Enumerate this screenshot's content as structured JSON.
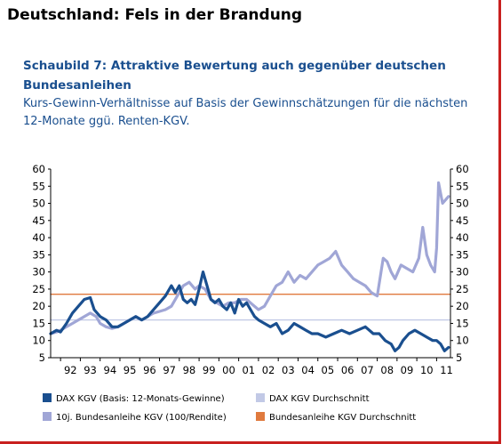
{
  "header": {
    "title": "Deutschland: Fels in der Brandung"
  },
  "chart_data": {
    "type": "line",
    "title": "Schaubild 7: Attraktive Bewertung auch gegenüber deutschen Bundesanleihen",
    "subtitle": "Kurs-Gewinn-Verhältnisse auf Basis der Gewinnschätzungen für die nächsten 12-Monate ggü. Renten-KGV.",
    "xlabel": "",
    "ylabel": "",
    "xlim": [
      1991.5,
      2011.7
    ],
    "ylim": [
      5,
      60
    ],
    "x_tick_labels": [
      "92",
      "93",
      "94",
      "95",
      "96",
      "97",
      "98",
      "99",
      "00",
      "01",
      "02",
      "03",
      "04",
      "05",
      "06",
      "07",
      "08",
      "09",
      "10",
      "11"
    ],
    "y_ticks": [
      5,
      10,
      15,
      20,
      25,
      30,
      35,
      40,
      45,
      50,
      55,
      60
    ],
    "grid": false,
    "legend_position": "bottom",
    "colors": {
      "dax": "#1a4f8f",
      "dax_avg": "#c2c9e6",
      "bund": "#a0a6d6",
      "bund_avg": "#e07a3e",
      "axis": "#000000"
    },
    "series": [
      {
        "name": "DAX KGV (Basis: 12-Monats-Gewinne)",
        "key": "dax",
        "x": [
          1991.5,
          1991.8,
          1992.0,
          1992.3,
          1992.6,
          1992.9,
          1993.2,
          1993.5,
          1993.7,
          1994.0,
          1994.3,
          1994.6,
          1994.9,
          1995.2,
          1995.5,
          1995.8,
          1996.1,
          1996.4,
          1996.7,
          1997.0,
          1997.3,
          1997.6,
          1997.8,
          1998.0,
          1998.2,
          1998.4,
          1998.6,
          1998.8,
          1999.0,
          1999.2,
          1999.4,
          1999.6,
          1999.8,
          2000.0,
          2000.2,
          2000.4,
          2000.6,
          2000.8,
          2001.0,
          2001.2,
          2001.4,
          2001.6,
          2001.8,
          2002.0,
          2002.3,
          2002.6,
          2002.9,
          2003.2,
          2003.5,
          2003.8,
          2004.1,
          2004.4,
          2004.7,
          2005.0,
          2005.4,
          2005.8,
          2006.2,
          2006.6,
          2007.0,
          2007.4,
          2007.8,
          2008.1,
          2008.4,
          2008.7,
          2008.9,
          2009.1,
          2009.3,
          2009.6,
          2009.9,
          2010.2,
          2010.5,
          2010.8,
          2011.0,
          2011.2,
          2011.4,
          2011.6
        ],
        "values": [
          12,
          13,
          12.5,
          15,
          18,
          20,
          22,
          22.5,
          19,
          17,
          16,
          14,
          14,
          15,
          16,
          17,
          16,
          17,
          19,
          21,
          23,
          26,
          24,
          26,
          22,
          21,
          22,
          20.5,
          25,
          30,
          26,
          22,
          21,
          22,
          20,
          19,
          21,
          18,
          22,
          20,
          21,
          19,
          17,
          16,
          15,
          14,
          15,
          12,
          13,
          15,
          14,
          13,
          12,
          12,
          11,
          12,
          13,
          12,
          13,
          14,
          12,
          12,
          10,
          9,
          7,
          8,
          10,
          12,
          13,
          12,
          11,
          10,
          10,
          9,
          7,
          8
        ]
      },
      {
        "name": "DAX KGV Durchschnitt",
        "key": "dax_avg",
        "x": [
          1991.5,
          2011.7
        ],
        "values": [
          16,
          16
        ]
      },
      {
        "name": "10j. Bundesanleihe KGV (100/Rendite)",
        "key": "bund",
        "x": [
          1991.5,
          1991.8,
          1992.0,
          1992.3,
          1992.6,
          1992.9,
          1993.2,
          1993.5,
          1993.8,
          1994.0,
          1994.3,
          1994.6,
          1994.9,
          1995.2,
          1995.5,
          1995.8,
          1996.1,
          1996.4,
          1996.7,
          1997.0,
          1997.3,
          1997.6,
          1997.9,
          1998.2,
          1998.5,
          1998.8,
          1999.0,
          1999.3,
          1999.6,
          1999.9,
          2000.2,
          2000.5,
          2000.8,
          2001.1,
          2001.4,
          2001.7,
          2002.0,
          2002.3,
          2002.6,
          2002.9,
          2003.2,
          2003.5,
          2003.8,
          2004.1,
          2004.4,
          2004.7,
          2005.0,
          2005.3,
          2005.6,
          2005.9,
          2006.2,
          2006.5,
          2006.8,
          2007.1,
          2007.4,
          2007.7,
          2008.0,
          2008.3,
          2008.5,
          2008.7,
          2008.9,
          2009.2,
          2009.5,
          2009.8,
          2010.1,
          2010.3,
          2010.5,
          2010.7,
          2010.9,
          2011.0,
          2011.1,
          2011.3,
          2011.6
        ],
        "values": [
          12,
          12.5,
          13,
          14,
          15,
          16,
          17,
          18,
          17,
          15,
          14,
          13.5,
          14,
          15,
          16,
          17,
          16,
          17,
          18,
          18.5,
          19,
          20,
          23,
          26,
          27,
          25,
          26,
          25,
          22,
          21,
          20,
          21,
          21,
          22,
          22,
          20.5,
          19,
          20,
          23,
          26,
          27,
          30,
          27,
          29,
          28,
          30,
          32,
          33,
          34,
          36,
          32,
          30,
          28,
          27,
          26,
          24,
          23,
          34,
          33,
          30,
          28,
          32,
          31,
          30,
          34,
          43,
          35,
          32,
          30,
          37,
          56,
          50,
          52
        ]
      },
      {
        "name": "Bundesanleihe KGV Durchschnitt",
        "key": "bund_avg",
        "x": [
          1991.5,
          2011.7
        ],
        "values": [
          23.5,
          23.5
        ]
      }
    ]
  }
}
